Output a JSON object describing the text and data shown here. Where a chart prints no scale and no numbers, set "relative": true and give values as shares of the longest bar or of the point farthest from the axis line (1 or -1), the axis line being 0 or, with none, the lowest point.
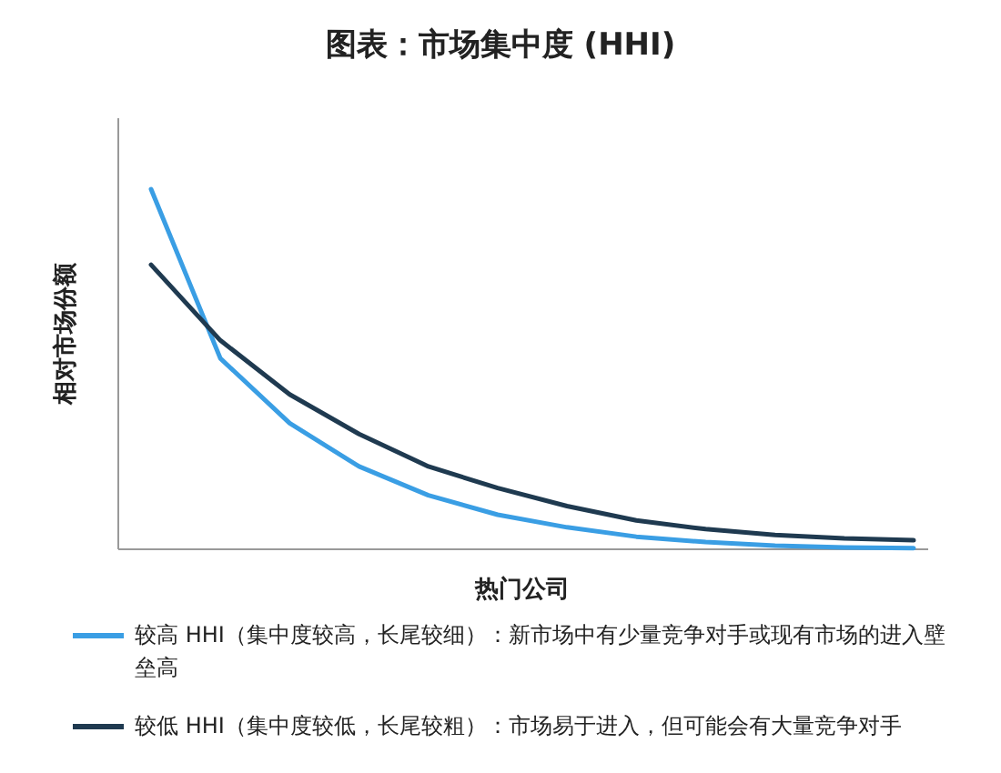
{
  "chart_data": {
    "type": "line",
    "title": "图表：市场集中度 (HHI)",
    "xlabel": "热门公司",
    "ylabel": "相对市场份额",
    "relative": true,
    "legend": "bottom",
    "categories": [
      null,
      null,
      null,
      null,
      null,
      null,
      null,
      null,
      null,
      null,
      null,
      null
    ],
    "series": [
      {
        "name": "较高 HHI（集中度较高，长尾较细）：新市场中有少量竞争对手或现有市场的进入壁垒高",
        "color": "#3a9ee4",
        "values": [
          1,
          0.53,
          0.35,
          0.23,
          0.15,
          0.096,
          0.061,
          0.035,
          0.02,
          0.01,
          0.005,
          0.003
        ]
      },
      {
        "name": "较低 HHI（集中度较低，长尾较粗）：市场易于进入，但可能会有大量竞争对手",
        "color": "#1f3a50",
        "values": [
          0.79,
          0.58,
          0.43,
          0.32,
          0.23,
          0.17,
          0.12,
          0.08,
          0.056,
          0.04,
          0.03,
          0.025
        ]
      }
    ]
  }
}
